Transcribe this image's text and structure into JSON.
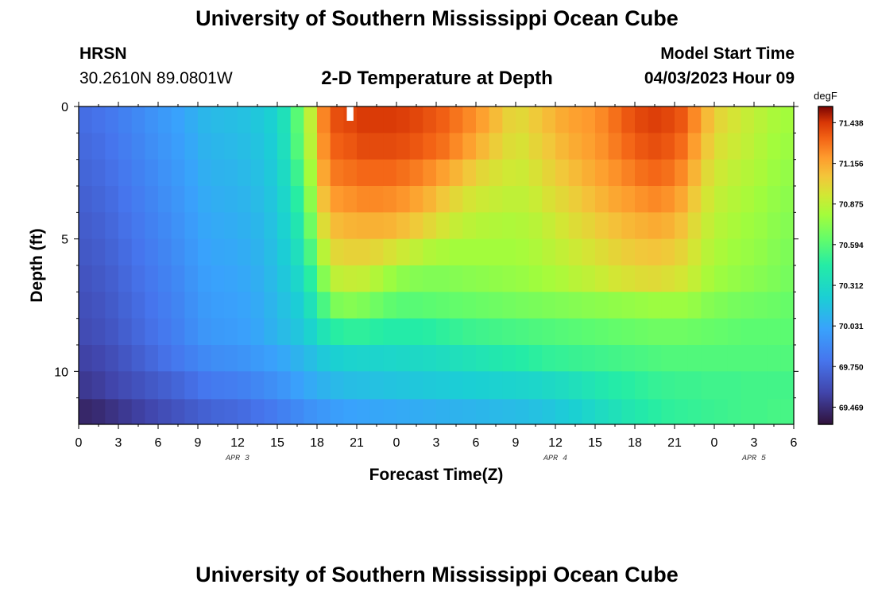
{
  "header": {
    "title": "University of Southern Mississippi Ocean Cube",
    "station": "HRSN",
    "coords": "30.2610N  89.0801W",
    "subtitle": "2-D Temperature at Depth",
    "model_label": "Model Start Time",
    "model_time": "04/03/2023 Hour 09"
  },
  "footer": {
    "title": "University of Southern Mississippi Ocean Cube"
  },
  "chart_data": {
    "type": "heatmap",
    "title": "2-D Temperature at Depth",
    "xlabel": "Forecast Time(Z)",
    "ylabel": "Depth (ft)",
    "x_hours_range": [
      0,
      54
    ],
    "x_tick_labels": [
      "0",
      "3",
      "6",
      "9",
      "12",
      "15",
      "18",
      "21",
      "0",
      "3",
      "6",
      "9",
      "12",
      "15",
      "18",
      "21",
      "0",
      "3",
      "6"
    ],
    "x_tick_hours": [
      0,
      3,
      6,
      9,
      12,
      15,
      18,
      21,
      24,
      27,
      30,
      33,
      36,
      39,
      42,
      45,
      48,
      51,
      54
    ],
    "date_labels": [
      {
        "text": "APR 3",
        "hour": 12
      },
      {
        "text": "APR 4",
        "hour": 36
      },
      {
        "text": "APR 5",
        "hour": 51
      }
    ],
    "ylim": [
      0,
      12
    ],
    "y_tick_labels": [
      "0",
      "5",
      "10"
    ],
    "y_tick_values": [
      0,
      5,
      10
    ],
    "colorbar": {
      "unit": "degF",
      "min": 69.35,
      "max": 71.55,
      "ticks": [
        "71.438",
        "71.156",
        "70.875",
        "70.594",
        "70.312",
        "70.031",
        "69.750",
        "69.469"
      ]
    },
    "depth_levels_ft": [
      0.5,
      1.5,
      2.5,
      3.5,
      4.5,
      5.5,
      6.5,
      7.5,
      8.5,
      9.5,
      10.5,
      11.6
    ],
    "time_hours": [
      0,
      1,
      2,
      3,
      4,
      5,
      6,
      7,
      8,
      9,
      10,
      11,
      12,
      13,
      14,
      15,
      16,
      17,
      18,
      19,
      20,
      21,
      22,
      23,
      24,
      25,
      26,
      27,
      28,
      29,
      30,
      31,
      32,
      33,
      34,
      35,
      36,
      37,
      38,
      39,
      40,
      41,
      42,
      43,
      44,
      45,
      46,
      47,
      48,
      49,
      50,
      51,
      52,
      53
    ],
    "temperature_degF": [
      [
        69.76,
        69.78,
        69.81,
        69.85,
        69.89,
        69.93,
        69.97,
        70.01,
        70.06,
        70.11,
        70.13,
        70.14,
        70.16,
        70.19,
        70.24,
        70.36,
        70.6,
        70.88,
        71.25,
        71.38,
        71.4,
        71.43,
        71.43,
        71.43,
        71.42,
        71.4,
        71.37,
        71.34,
        71.29,
        71.24,
        71.18,
        71.1,
        71.02,
        71.0,
        71.05,
        71.1,
        71.15,
        71.18,
        71.2,
        71.24,
        71.3,
        71.36,
        71.4,
        71.42,
        71.4,
        71.36,
        71.24,
        71.1,
        71.0,
        70.95,
        70.9,
        70.86,
        70.82,
        70.8
      ],
      [
        69.74,
        69.76,
        69.79,
        69.83,
        69.87,
        69.91,
        69.95,
        69.99,
        70.04,
        70.09,
        70.11,
        70.12,
        70.14,
        70.17,
        70.22,
        70.34,
        70.58,
        70.86,
        71.22,
        71.34,
        71.36,
        71.39,
        71.39,
        71.39,
        71.38,
        71.36,
        71.33,
        71.3,
        71.24,
        71.18,
        71.11,
        71.04,
        70.98,
        70.96,
        71.01,
        71.06,
        71.11,
        71.15,
        71.18,
        71.22,
        71.27,
        71.32,
        71.36,
        71.38,
        71.36,
        71.31,
        71.19,
        71.05,
        70.96,
        70.92,
        70.88,
        70.84,
        70.8,
        70.78
      ],
      [
        69.72,
        69.74,
        69.77,
        69.81,
        69.85,
        69.89,
        69.93,
        69.97,
        70.02,
        70.07,
        70.09,
        70.1,
        70.12,
        70.15,
        70.2,
        70.31,
        70.52,
        70.8,
        71.16,
        71.28,
        71.3,
        71.32,
        71.32,
        71.32,
        71.3,
        71.27,
        71.23,
        71.18,
        71.12,
        71.06,
        71.0,
        70.96,
        70.93,
        70.92,
        70.96,
        71.01,
        71.06,
        71.1,
        71.14,
        71.18,
        71.22,
        71.26,
        71.3,
        71.32,
        71.3,
        71.24,
        71.12,
        70.99,
        70.92,
        70.88,
        70.85,
        70.82,
        70.78,
        70.76
      ],
      [
        69.7,
        69.72,
        69.75,
        69.79,
        69.83,
        69.87,
        69.91,
        69.95,
        70.0,
        70.05,
        70.07,
        70.08,
        70.1,
        70.13,
        70.18,
        70.28,
        70.46,
        70.74,
        71.08,
        71.2,
        71.22,
        71.24,
        71.24,
        71.23,
        71.21,
        71.17,
        71.12,
        71.06,
        71.0,
        70.95,
        70.92,
        70.9,
        70.88,
        70.88,
        70.91,
        70.96,
        71.0,
        71.04,
        71.08,
        71.12,
        71.16,
        71.19,
        71.22,
        71.24,
        71.22,
        71.16,
        71.05,
        70.94,
        70.88,
        70.85,
        70.82,
        70.79,
        70.76,
        70.74
      ],
      [
        69.68,
        69.7,
        69.73,
        69.77,
        69.81,
        69.85,
        69.89,
        69.93,
        69.98,
        70.03,
        70.05,
        70.06,
        70.08,
        70.11,
        70.16,
        70.25,
        70.4,
        70.66,
        70.98,
        71.1,
        71.12,
        71.13,
        71.13,
        71.12,
        71.09,
        71.05,
        71.0,
        70.95,
        70.9,
        70.87,
        70.85,
        70.84,
        70.83,
        70.84,
        70.86,
        70.9,
        70.94,
        70.98,
        71.01,
        71.05,
        71.08,
        71.11,
        71.13,
        71.15,
        71.13,
        71.08,
        70.99,
        70.9,
        70.85,
        70.82,
        70.79,
        70.77,
        70.74,
        70.72
      ],
      [
        69.66,
        69.68,
        69.71,
        69.75,
        69.79,
        69.83,
        69.87,
        69.91,
        69.96,
        70.01,
        70.03,
        70.04,
        70.06,
        70.09,
        70.14,
        70.22,
        70.34,
        70.56,
        70.86,
        71.0,
        71.02,
        71.02,
        71.0,
        70.96,
        70.92,
        70.88,
        70.84,
        70.82,
        70.8,
        70.8,
        70.8,
        70.8,
        70.8,
        70.81,
        70.83,
        70.86,
        70.89,
        70.92,
        70.95,
        70.98,
        71.01,
        71.04,
        71.06,
        71.07,
        71.05,
        71.01,
        70.94,
        70.86,
        70.82,
        70.79,
        70.77,
        70.75,
        70.72,
        70.7
      ],
      [
        69.64,
        69.66,
        69.69,
        69.73,
        69.77,
        69.81,
        69.85,
        69.89,
        69.94,
        69.99,
        70.01,
        70.02,
        70.04,
        70.07,
        70.12,
        70.19,
        70.28,
        70.46,
        70.72,
        70.88,
        70.9,
        70.89,
        70.84,
        70.78,
        70.74,
        70.72,
        70.71,
        70.71,
        70.72,
        70.73,
        70.74,
        70.75,
        70.76,
        70.77,
        70.79,
        70.81,
        70.83,
        70.86,
        70.88,
        70.91,
        70.94,
        70.96,
        70.98,
        70.99,
        70.97,
        70.94,
        70.89,
        70.82,
        70.78,
        70.76,
        70.74,
        70.72,
        70.7,
        70.68
      ],
      [
        69.62,
        69.64,
        69.67,
        69.71,
        69.75,
        69.79,
        69.83,
        69.87,
        69.92,
        69.97,
        69.99,
        70.0,
        70.02,
        70.05,
        70.1,
        70.16,
        70.22,
        70.36,
        70.56,
        70.7,
        70.72,
        70.7,
        70.66,
        70.62,
        70.6,
        70.6,
        70.61,
        70.62,
        70.63,
        70.64,
        70.65,
        70.66,
        70.67,
        70.68,
        70.69,
        70.7,
        70.71,
        70.72,
        70.73,
        70.74,
        70.75,
        70.76,
        70.77,
        70.78,
        70.78,
        70.78,
        70.76,
        70.72,
        70.7,
        70.68,
        70.67,
        70.66,
        70.65,
        70.64
      ],
      [
        69.6,
        69.62,
        69.65,
        69.69,
        69.73,
        69.77,
        69.81,
        69.85,
        69.9,
        69.95,
        69.97,
        69.98,
        70.0,
        70.03,
        70.08,
        70.13,
        70.18,
        70.26,
        70.38,
        70.46,
        70.48,
        70.48,
        70.46,
        70.44,
        70.44,
        70.45,
        70.46,
        70.48,
        70.5,
        70.52,
        70.53,
        70.54,
        70.55,
        70.56,
        70.57,
        70.58,
        70.59,
        70.6,
        70.61,
        70.62,
        70.63,
        70.64,
        70.65,
        70.66,
        70.66,
        70.66,
        70.65,
        70.64,
        70.63,
        70.62,
        70.61,
        70.61,
        70.61,
        70.61
      ],
      [
        69.56,
        69.58,
        69.61,
        69.65,
        69.69,
        69.73,
        69.77,
        69.81,
        69.85,
        69.89,
        69.91,
        69.92,
        69.94,
        69.97,
        70.0,
        70.04,
        70.09,
        70.14,
        70.2,
        70.24,
        70.26,
        70.27,
        70.27,
        70.28,
        70.29,
        70.3,
        70.31,
        70.33,
        70.35,
        70.37,
        70.39,
        70.41,
        70.43,
        70.45,
        70.47,
        70.49,
        70.5,
        70.51,
        70.52,
        70.53,
        70.54,
        70.55,
        70.56,
        70.57,
        70.58,
        70.58,
        70.58,
        70.58,
        70.58,
        70.58,
        70.58,
        70.58,
        70.58,
        70.58
      ],
      [
        69.52,
        69.54,
        69.57,
        69.6,
        69.63,
        69.66,
        69.69,
        69.72,
        69.76,
        69.8,
        69.82,
        69.83,
        69.85,
        69.88,
        69.91,
        69.95,
        70.0,
        70.05,
        70.09,
        70.12,
        70.14,
        70.15,
        70.16,
        70.17,
        70.18,
        70.19,
        70.2,
        70.21,
        70.22,
        70.23,
        70.24,
        70.25,
        70.26,
        70.27,
        70.28,
        70.3,
        70.32,
        70.35,
        70.38,
        70.41,
        70.44,
        70.46,
        70.48,
        70.5,
        70.51,
        70.52,
        70.52,
        70.53,
        70.53,
        70.53,
        70.54,
        70.54,
        70.54,
        70.54
      ],
      [
        69.44,
        69.46,
        69.49,
        69.52,
        69.55,
        69.58,
        69.61,
        69.64,
        69.67,
        69.7,
        69.72,
        69.73,
        69.75,
        69.78,
        69.81,
        69.85,
        69.89,
        69.93,
        69.96,
        69.99,
        70.01,
        70.02,
        70.03,
        70.04,
        70.05,
        70.06,
        70.07,
        70.08,
        70.09,
        70.1,
        70.11,
        70.12,
        70.13,
        70.14,
        70.16,
        70.18,
        70.21,
        70.24,
        70.28,
        70.32,
        70.36,
        70.4,
        70.43,
        70.46,
        70.48,
        70.49,
        70.5,
        70.51,
        70.52,
        70.53,
        70.54,
        70.54,
        70.55,
        70.55
      ]
    ],
    "missing_cells": [
      {
        "time_hour": 20,
        "depth_ft": 0.0
      }
    ]
  }
}
